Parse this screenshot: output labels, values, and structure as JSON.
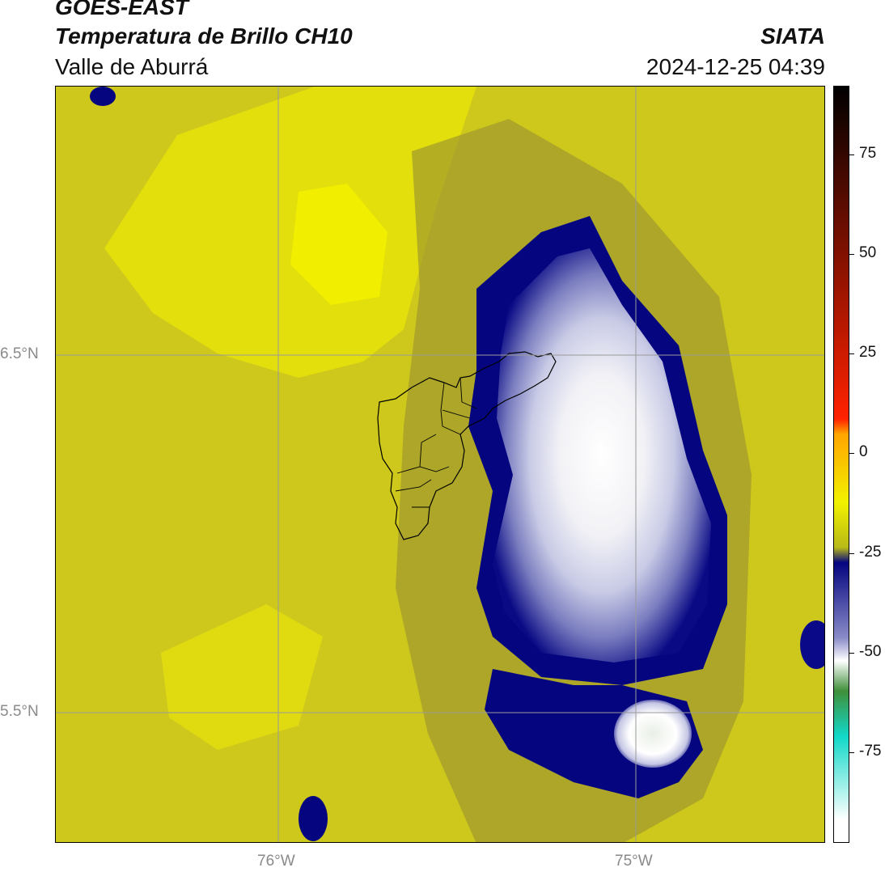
{
  "header": {
    "satellite": "GOES-EAST",
    "product": "Temperatura de Brillo CH10",
    "region": "Valle de Aburrá",
    "organization": "SIATA",
    "timestamp": "2024-12-25 04:39"
  },
  "map": {
    "lat_labels": [
      "6.5°N",
      "5.5°N"
    ],
    "lon_labels": [
      "76°W",
      "75°W"
    ],
    "background_color": "#cfc81c",
    "gridline_color": "#9a9a9a"
  },
  "colorbar": {
    "tick_labels": [
      "75",
      "50",
      "25",
      "0",
      "-25",
      "-50",
      "-75"
    ],
    "stops": [
      {
        "color": "#000000"
      },
      {
        "color": "#ff2200"
      },
      {
        "color": "#ffa500"
      },
      {
        "color": "#f2f200"
      },
      {
        "color": "#b9b918"
      },
      {
        "color": "#050580"
      },
      {
        "color": "#8a8cc8"
      },
      {
        "color": "#ffffff"
      },
      {
        "color": "#3f8f3a"
      },
      {
        "color": "#12d8c8"
      },
      {
        "color": "#ffffff"
      }
    ]
  }
}
